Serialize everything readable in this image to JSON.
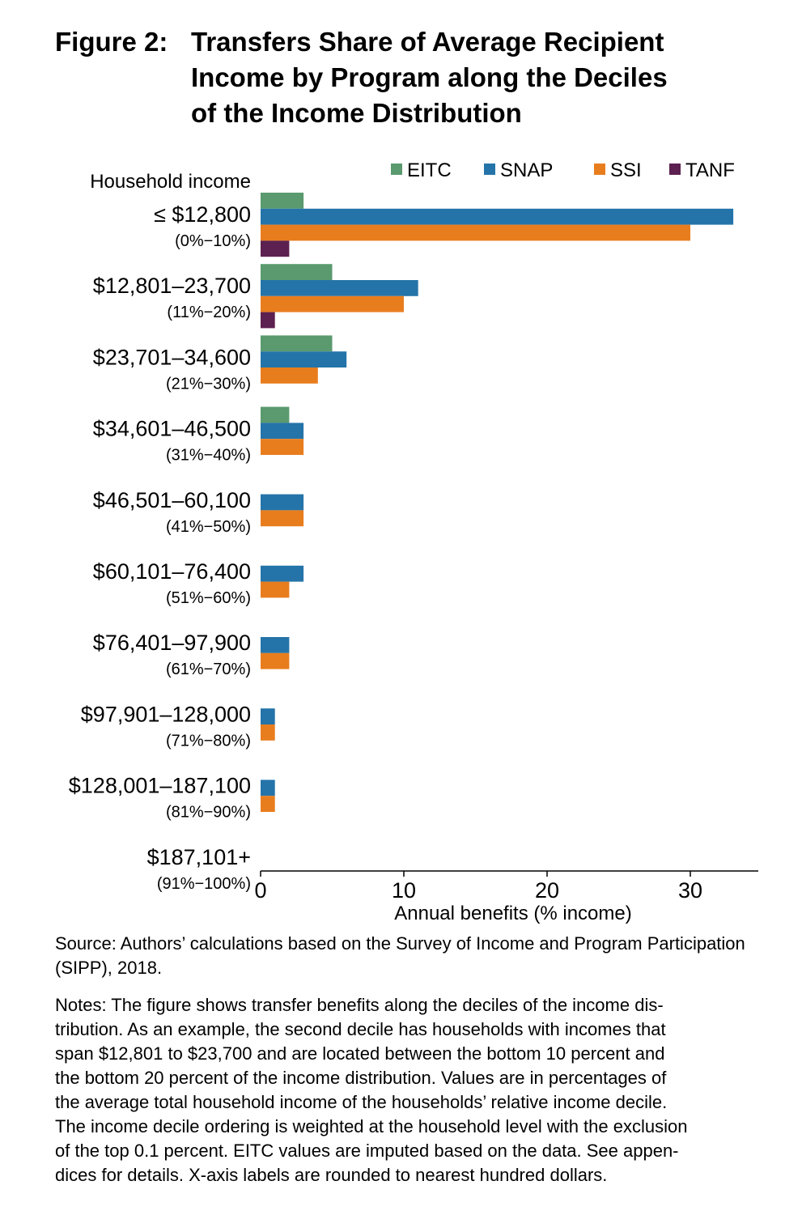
{
  "figure": {
    "prefix": "Figure 2:",
    "title_lines": [
      "Transfers Share of Average Recipient",
      "Income by Program along the Deciles",
      "of the Income Distribution"
    ]
  },
  "colors": {
    "EITC": "#5a9a6e",
    "SNAP": "#2574a9",
    "SSI": "#e87d1e",
    "TANF": "#5c2150"
  },
  "chart_data": {
    "type": "bar",
    "orientation": "horizontal",
    "y_header": "Household income",
    "xlabel": "Annual benefits (% income)",
    "xlim": [
      0,
      35
    ],
    "xticks": [
      0,
      10,
      20,
      30
    ],
    "legend_position": "top-right",
    "grid": false,
    "categories": [
      {
        "label": "≤ $12,800",
        "sub": "(0%−10%)"
      },
      {
        "label": "$12,801–23,700",
        "sub": "(11%−20%)"
      },
      {
        "label": "$23,701–34,600",
        "sub": "(21%−30%)"
      },
      {
        "label": "$34,601–46,500",
        "sub": "(31%−40%)"
      },
      {
        "label": "$46,501–60,100",
        "sub": "(41%−50%)"
      },
      {
        "label": "$60,101–76,400",
        "sub": "(51%−60%)"
      },
      {
        "label": "$76,401–97,900",
        "sub": "(61%−70%)"
      },
      {
        "label": "$97,901–128,000",
        "sub": "(71%−80%)"
      },
      {
        "label": "$128,001–187,100",
        "sub": "(81%−90%)"
      },
      {
        "label": "$187,101+",
        "sub": "(91%−100%)"
      }
    ],
    "series": [
      {
        "name": "EITC",
        "values": [
          3,
          5,
          5,
          2,
          0,
          0,
          0,
          0,
          0,
          0
        ]
      },
      {
        "name": "SNAP",
        "values": [
          33,
          11,
          6,
          3,
          3,
          3,
          2,
          1,
          1,
          0
        ]
      },
      {
        "name": "SSI",
        "values": [
          30,
          10,
          4,
          3,
          3,
          2,
          2,
          1,
          1,
          0
        ]
      },
      {
        "name": "TANF",
        "values": [
          2,
          1,
          0,
          0,
          0,
          0,
          0,
          0,
          0,
          0
        ]
      }
    ]
  },
  "source": "Source: Authors’ calculations based on the Survey of Income and Program Participation (SIPP), 2018.",
  "notes_lines": [
    "Notes: The figure shows transfer benefits along the deciles of the income dis-",
    "tribution. As an example, the second decile has households with incomes that",
    "span $12,801 to $23,700 and are located between the bottom 10 percent and",
    "the bottom 20 percent of the income distribution. Values are in percentages of",
    "the average total household income of the households’ relative income decile.",
    "The income decile ordering is weighted at the household level with the exclusion",
    "of the top 0.1 percent. EITC values are imputed based on the data. See appen-",
    "dices for details. X-axis labels are rounded to nearest hundred dollars."
  ]
}
